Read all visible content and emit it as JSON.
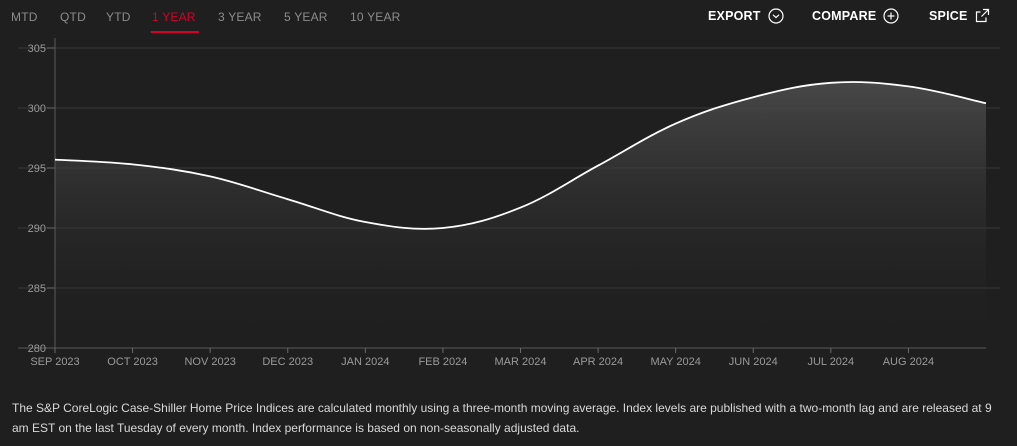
{
  "periods": {
    "items": [
      {
        "label": "MTD"
      },
      {
        "label": "QTD"
      },
      {
        "label": "YTD"
      },
      {
        "label": "1 YEAR"
      },
      {
        "label": "3 YEAR"
      },
      {
        "label": "5 YEAR"
      },
      {
        "label": "10 YEAR"
      }
    ],
    "active": "1 YEAR"
  },
  "actions": {
    "export_label": "EXPORT",
    "export_icon": "chevron-down-circle-icon",
    "compare_label": "COMPARE",
    "compare_icon": "plus-circle-icon",
    "spice_label": "SPICE",
    "spice_icon": "external-link-icon"
  },
  "colors": {
    "background": "#1f1f1f",
    "accent": "#d6002a",
    "line": "#ffffff",
    "grid": "#3a3a3a",
    "tick_text": "#9a9a9a"
  },
  "chart_data": {
    "type": "area",
    "title": "",
    "xlabel": "",
    "ylabel": "",
    "x": [
      "SEP 2023",
      "OCT 2023",
      "NOV 2023",
      "DEC 2023",
      "JAN 2024",
      "FEB 2024",
      "MAR 2024",
      "APR 2024",
      "MAY 2024",
      "JUN 2024",
      "JUL 2024",
      "AUG 2024",
      ""
    ],
    "series": [
      {
        "values": [
          295.7,
          295.3,
          294.3,
          292.4,
          290.5,
          290.0,
          291.7,
          295.2,
          298.7,
          300.9,
          302.1,
          301.8,
          300.4
        ]
      }
    ],
    "ylim": [
      280,
      305
    ],
    "yticks": [
      "280",
      "285",
      "290",
      "295",
      "300",
      "305"
    ],
    "grid": true,
    "legend": "none"
  },
  "footnote": "The S&P CoreLogic Case-Shiller Home Price Indices are calculated monthly using a three-month moving average. Index levels are published with a two-month lag and are released at 9 am EST on the last Tuesday of every month. Index performance is based on non-seasonally adjusted data."
}
